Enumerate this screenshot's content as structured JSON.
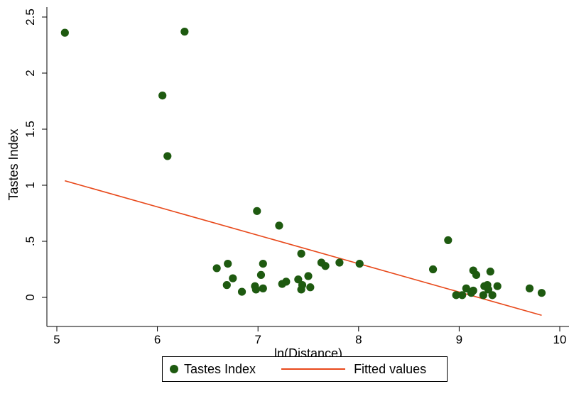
{
  "chart_data": {
    "type": "scatter",
    "xlabel": "ln(Distance)",
    "ylabel": "Tastes Index",
    "xlim": [
      5,
      10
    ],
    "ylim": [
      -0.25,
      2.5
    ],
    "x_ticks": [
      "5",
      "6",
      "7",
      "8",
      "9",
      "10"
    ],
    "y_ticks": [
      "0",
      ".5",
      "1",
      "1.5",
      "2",
      "2.5"
    ],
    "x_tick_values": [
      5,
      6,
      7,
      8,
      9,
      10
    ],
    "y_tick_values": [
      0,
      0.5,
      1,
      1.5,
      2,
      2.5
    ],
    "grid": false,
    "legend_position": "bottom",
    "series": [
      {
        "name": "Tastes Index",
        "kind": "scatter",
        "color": "#1e5a10",
        "points": [
          [
            5.08,
            2.36
          ],
          [
            6.05,
            1.8
          ],
          [
            6.1,
            1.26
          ],
          [
            6.27,
            2.37
          ],
          [
            6.59,
            0.26
          ],
          [
            6.69,
            0.11
          ],
          [
            6.7,
            0.3
          ],
          [
            6.75,
            0.17
          ],
          [
            6.84,
            0.05
          ],
          [
            6.97,
            0.1
          ],
          [
            6.98,
            0.07
          ],
          [
            6.99,
            0.77
          ],
          [
            7.03,
            0.2
          ],
          [
            7.05,
            0.3
          ],
          [
            7.05,
            0.08
          ],
          [
            7.21,
            0.64
          ],
          [
            7.24,
            0.12
          ],
          [
            7.28,
            0.14
          ],
          [
            7.4,
            0.16
          ],
          [
            7.43,
            0.39
          ],
          [
            7.43,
            0.07
          ],
          [
            7.44,
            0.11
          ],
          [
            7.5,
            0.19
          ],
          [
            7.52,
            0.09
          ],
          [
            7.63,
            0.31
          ],
          [
            7.67,
            0.28
          ],
          [
            7.81,
            0.31
          ],
          [
            8.01,
            0.3
          ],
          [
            8.74,
            0.25
          ],
          [
            8.89,
            0.51
          ],
          [
            8.97,
            0.02
          ],
          [
            9.03,
            0.02
          ],
          [
            9.07,
            0.08
          ],
          [
            9.12,
            0.04
          ],
          [
            9.14,
            0.06
          ],
          [
            9.14,
            0.24
          ],
          [
            9.17,
            0.2
          ],
          [
            9.24,
            0.02
          ],
          [
            9.25,
            0.1
          ],
          [
            9.28,
            0.11
          ],
          [
            9.29,
            0.07
          ],
          [
            9.31,
            0.23
          ],
          [
            9.33,
            0.02
          ],
          [
            9.38,
            0.1
          ],
          [
            9.7,
            0.08
          ],
          [
            9.82,
            0.04
          ]
        ]
      },
      {
        "name": "Fitted values",
        "kind": "line",
        "color": "#e8491b",
        "points": [
          [
            5.08,
            1.04
          ],
          [
            9.82,
            -0.16
          ]
        ]
      }
    ]
  },
  "legend": {
    "items": [
      "Tastes Index",
      "Fitted values"
    ]
  }
}
